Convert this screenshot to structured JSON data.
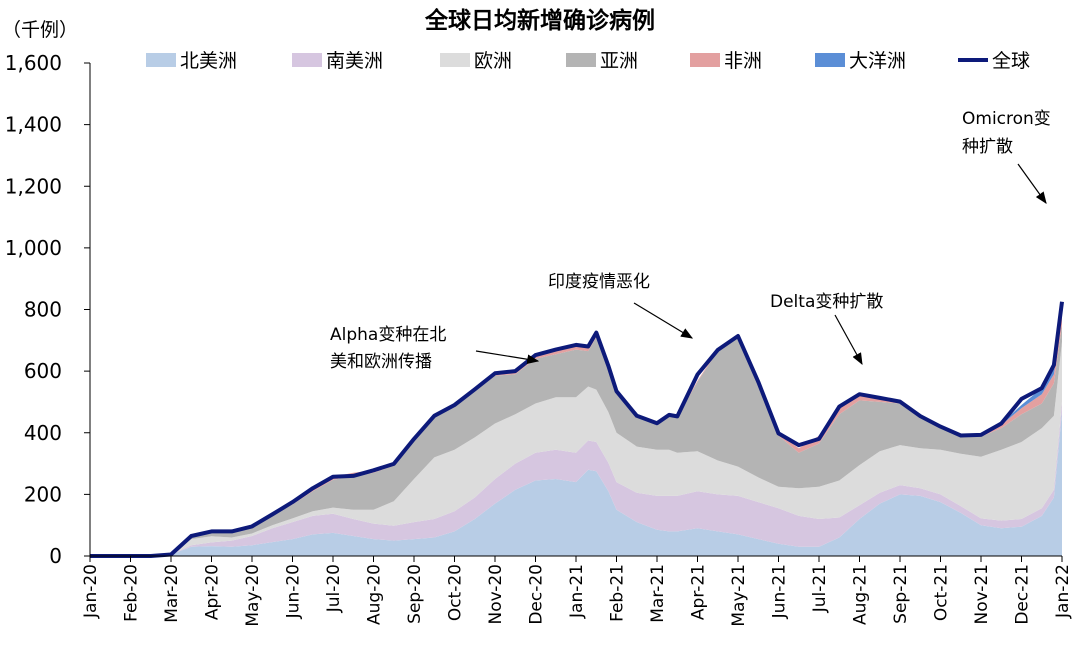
{
  "chart_data": {
    "type": "area",
    "title": "全球日均新增确诊病例",
    "unit_label": "（千例）",
    "ylim": [
      0,
      1600
    ],
    "yticks": [
      "0",
      "200",
      "400",
      "600",
      "800",
      "1,000",
      "1,200",
      "1,400",
      "1,600"
    ],
    "ytick_values": [
      0,
      200,
      400,
      600,
      800,
      1000,
      1200,
      1400,
      1600
    ],
    "categories": [
      "Jan-20",
      "Feb-20",
      "Mar-20",
      "Apr-20",
      "May-20",
      "Jun-20",
      "Jul-20",
      "Aug-20",
      "Sep-20",
      "Oct-20",
      "Nov-20",
      "Dec-20",
      "Jan-21",
      "Feb-21",
      "Mar-21",
      "Apr-21",
      "May-21",
      "Jun-21",
      "Jul-21",
      "Aug-21",
      "Sep-21",
      "Oct-21",
      "Nov-21",
      "Dec-21",
      "Jan-22"
    ],
    "legend_position": "top",
    "x": [
      0,
      0.5,
      1,
      1.5,
      2,
      2.5,
      3,
      3.5,
      4,
      4.5,
      5,
      5.5,
      6,
      6.5,
      7,
      7.5,
      8,
      8.5,
      9,
      9.5,
      10,
      10.5,
      11,
      11.5,
      12,
      12.3,
      12.5,
      12.8,
      13,
      13.5,
      14,
      14.3,
      14.5,
      15,
      15.5,
      16,
      16.5,
      17,
      17.5,
      18,
      18.5,
      19,
      19.5,
      20,
      20.5,
      21,
      21.5,
      22,
      22.5,
      23,
      23.5,
      23.8,
      24
    ],
    "series": [
      {
        "name": "北美洲",
        "color": "#b8cde6",
        "values": [
          0,
          0,
          0,
          0,
          5,
          30,
          32,
          30,
          35,
          45,
          55,
          70,
          75,
          65,
          55,
          50,
          55,
          60,
          80,
          120,
          170,
          215,
          245,
          250,
          240,
          280,
          275,
          210,
          150,
          110,
          85,
          80,
          80,
          90,
          80,
          70,
          55,
          40,
          30,
          30,
          60,
          120,
          170,
          200,
          195,
          175,
          140,
          100,
          90,
          95,
          130,
          190,
          470
        ]
      },
      {
        "name": "南美洲",
        "color": "#d6c6e0",
        "values": [
          0,
          0,
          0,
          0,
          0,
          5,
          12,
          20,
          30,
          45,
          55,
          60,
          62,
          55,
          50,
          48,
          55,
          60,
          65,
          70,
          80,
          85,
          90,
          95,
          95,
          95,
          95,
          92,
          90,
          95,
          110,
          115,
          115,
          120,
          120,
          125,
          120,
          115,
          100,
          90,
          65,
          45,
          35,
          30,
          25,
          25,
          22,
          22,
          25,
          25,
          25,
          25,
          30
        ]
      },
      {
        "name": "欧洲",
        "color": "#dcdcdc",
        "values": [
          0,
          0,
          0,
          0,
          0,
          20,
          20,
          10,
          8,
          10,
          12,
          15,
          20,
          30,
          45,
          80,
          140,
          200,
          200,
          195,
          180,
          160,
          160,
          170,
          180,
          175,
          170,
          165,
          160,
          150,
          150,
          150,
          140,
          130,
          110,
          95,
          80,
          70,
          90,
          105,
          120,
          130,
          135,
          130,
          130,
          145,
          170,
          200,
          230,
          250,
          260,
          240,
          195
        ]
      },
      {
        "name": "亚洲",
        "color": "#b4b4b4",
        "values": [
          0,
          0,
          0,
          0,
          0,
          10,
          15,
          18,
          20,
          30,
          45,
          65,
          90,
          110,
          120,
          115,
          125,
          130,
          140,
          150,
          155,
          130,
          145,
          140,
          155,
          115,
          170,
          135,
          125,
          95,
          85,
          110,
          115,
          225,
          355,
          420,
          305,
          165,
          115,
          140,
          215,
          210,
          160,
          135,
          100,
          70,
          55,
          65,
          70,
          90,
          80,
          105,
          55
        ]
      },
      {
        "name": "非洲",
        "color": "#e3a0a0",
        "values": [
          0,
          0,
          0,
          0,
          0,
          0,
          1,
          2,
          3,
          5,
          8,
          10,
          10,
          10,
          8,
          6,
          5,
          5,
          5,
          6,
          8,
          10,
          12,
          15,
          15,
          15,
          15,
          15,
          10,
          5,
          3,
          3,
          3,
          4,
          4,
          4,
          5,
          8,
          15,
          25,
          25,
          20,
          12,
          6,
          4,
          3,
          2,
          3,
          10,
          20,
          30,
          30,
          40
        ]
      },
      {
        "name": "大洋洲",
        "color": "#5b8ed6",
        "values": [
          0,
          0,
          0,
          0,
          0,
          0,
          0,
          0,
          0,
          0,
          0,
          0,
          0,
          0,
          0,
          0,
          0,
          0,
          0,
          0,
          0,
          0,
          0,
          0,
          0,
          0,
          0,
          0,
          0,
          0,
          0,
          0,
          0,
          0,
          0,
          0,
          0,
          0,
          0,
          0,
          0,
          0,
          1,
          1,
          1,
          2,
          2,
          3,
          5,
          10,
          20,
          30,
          35
        ]
      },
      {
        "name": "全球",
        "color": "#0d1a7a",
        "values": [
          0,
          0,
          0,
          0,
          5,
          65,
          80,
          80,
          96,
          135,
          175,
          220,
          257,
          260,
          278,
          299,
          380,
          455,
          490,
          541,
          593,
          600,
          652,
          670,
          685,
          680,
          725,
          617,
          535,
          455,
          431,
          458,
          453,
          589,
          669,
          714,
          565,
          398,
          360,
          380,
          485,
          525,
          513,
          501,
          454,
          420,
          391,
          393,
          430,
          510,
          545,
          620,
          825
        ]
      }
    ],
    "annotations": [
      {
        "line1": "Alpha变种在北",
        "line2": "美和欧洲传播"
      },
      {
        "line1": "印度疫情恶化",
        "line2": ""
      },
      {
        "line1": "Delta变种扩散",
        "line2": ""
      },
      {
        "line1": "Omicron变",
        "line2": "种扩散"
      }
    ]
  }
}
